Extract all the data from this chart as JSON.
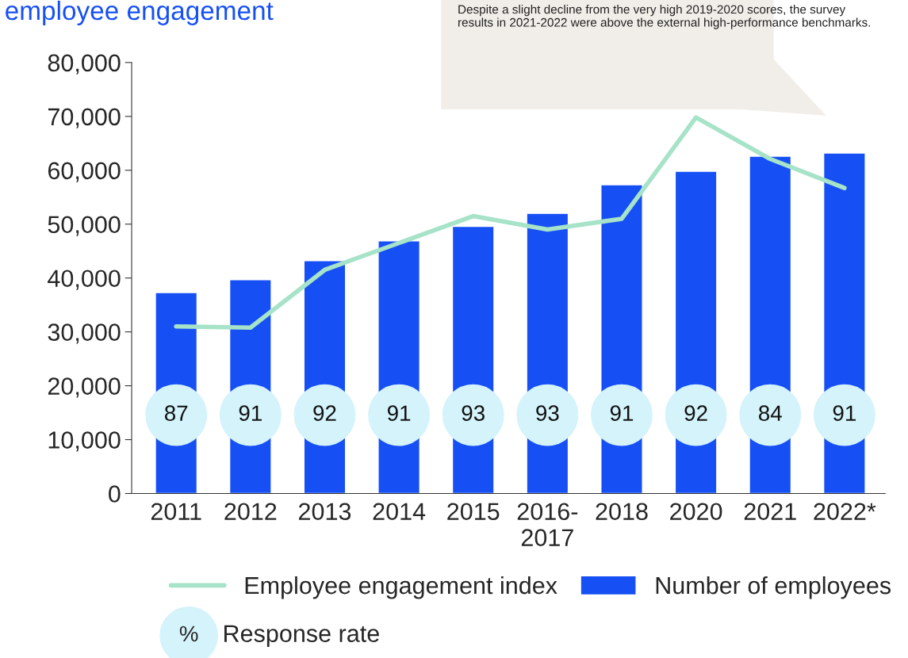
{
  "chart_data": {
    "type": "bar",
    "title": "employee engagement",
    "categories": [
      "2011",
      "2012",
      "2013",
      "2014",
      "2015",
      "2016-\n2017",
      "2018",
      "2020",
      "2021",
      "2022*"
    ],
    "series": [
      {
        "name": "Employee engagement index",
        "type": "line",
        "color": "#a6e3c8",
        "values": [
          31000,
          30800,
          41500,
          46500,
          51500,
          49000,
          51000,
          69800,
          62100,
          56700
        ]
      },
      {
        "name": "Number of employees",
        "color": "#1650f5",
        "values": [
          37300,
          39700,
          43200,
          46900,
          49600,
          52000,
          57300,
          59800,
          62600,
          63200
        ]
      }
    ],
    "ylim": [
      0,
      80000
    ],
    "yticks": [
      {
        "value": 0,
        "label": "0"
      },
      {
        "value": 10000,
        "label": "10,000"
      },
      {
        "value": 20000,
        "label": "20,000"
      },
      {
        "value": 30000,
        "label": "30,000"
      },
      {
        "value": 40000,
        "label": "40,000"
      },
      {
        "value": 50000,
        "label": "50,000"
      },
      {
        "value": 60000,
        "label": "60,000"
      },
      {
        "value": 70000,
        "label": "70,000"
      },
      {
        "value": 80000,
        "label": "80,000"
      }
    ],
    "grid": false,
    "legend": "bottom",
    "annotations": [
      "Despite a slight decline from the very high 2019-2020 scores, the survey results in 2021-2022 were above the external high-performance benchmarks.",
      "%",
      "Response rate",
      "87",
      "91",
      "92",
      "91",
      "93",
      "93",
      "91",
      "92",
      "84",
      "91"
    ]
  }
}
